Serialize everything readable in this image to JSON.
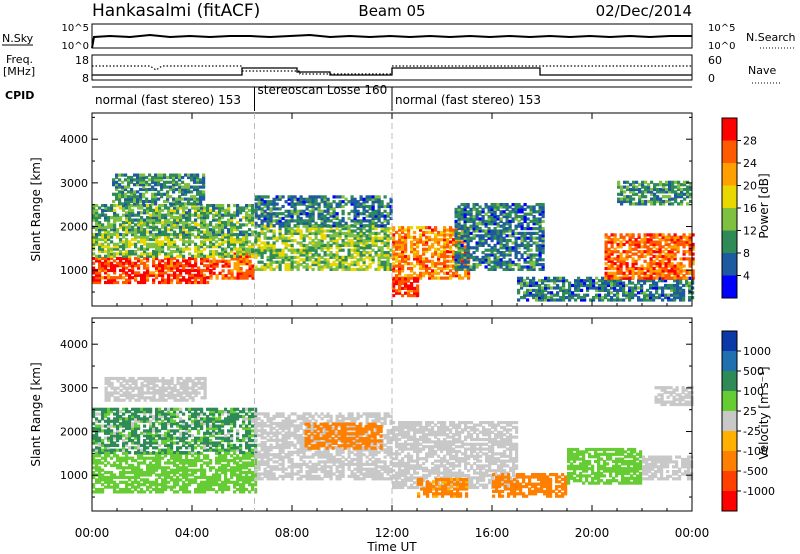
{
  "header": {
    "station": "Hankasalmi (fitACF)",
    "beam": "Beam 05",
    "date": "02/Dec/2014"
  },
  "top_strips": {
    "nsky_label": "N.Sky",
    "nsky_ticks": [
      "10^5",
      "10^0"
    ],
    "nsearch_label": "N.Search",
    "nsearch_ticks": [
      "10^5",
      "10^0"
    ],
    "freq_label": "Freq.",
    "freq_unit": "[MHz]",
    "freq_ticks": [
      "18",
      "8"
    ],
    "nave_label": "Nave",
    "nave_ticks": [
      "60",
      "0"
    ],
    "cpid_label": "CPID",
    "modes": [
      {
        "label": "normal (fast stereo) 153",
        "start": 0,
        "end": 6.5
      },
      {
        "label": "stereoscan Losse 160",
        "start": 6.5,
        "end": 12
      },
      {
        "label": "normal (fast stereo) 153",
        "start": 12,
        "end": 24
      }
    ]
  },
  "colorbars": {
    "power": {
      "label": "Power [dB]",
      "ticks": [
        "28",
        "24",
        "20",
        "16",
        "12",
        "8",
        "4"
      ],
      "colors": [
        "#ff0000",
        "#ff5a00",
        "#ffa000",
        "#e8d800",
        "#80c040",
        "#2e8b57",
        "#1e5aa0",
        "#0000ff"
      ]
    },
    "velocity": {
      "label": "Velocity [m s⁻¹]",
      "ticks": [
        "1000",
        "500",
        "100",
        "25",
        "-25",
        "-100",
        "-500",
        "-1000"
      ],
      "colors": [
        "#0b3aa8",
        "#2070b0",
        "#2e8b57",
        "#66cc33",
        "#c8c8c8",
        "#ffb000",
        "#ff8000",
        "#ff4000",
        "#ff0000"
      ]
    }
  },
  "axes": {
    "ylabel": "Slant Range [km]",
    "xlabel": "Time UT",
    "xticks": [
      "00:00",
      "04:00",
      "08:00",
      "12:00",
      "16:00",
      "20:00",
      "00:00"
    ]
  },
  "chart_data": [
    {
      "type": "heatmap",
      "title": "Power",
      "xlabel": "Time UT",
      "ylabel": "Slant Range [km]",
      "xlim": [
        0,
        24
      ],
      "ylim": [
        180,
        4600
      ],
      "yticks": [
        1000,
        2000,
        3000,
        4000
      ],
      "colorbar_label": "Power [dB]",
      "regions": [
        {
          "t0": 0.0,
          "t1": 4.7,
          "r0": 700,
          "r1": 1300,
          "value": 28
        },
        {
          "t0": 4.7,
          "t1": 6.5,
          "r0": 800,
          "r1": 1400,
          "value": 26
        },
        {
          "t0": 0.0,
          "t1": 6.5,
          "r0": 1300,
          "r1": 1800,
          "value": 14
        },
        {
          "t0": 0.0,
          "t1": 6.5,
          "r0": 1800,
          "r1": 2500,
          "value": 12
        },
        {
          "t0": 0.8,
          "t1": 4.5,
          "r0": 2500,
          "r1": 3200,
          "value": 10
        },
        {
          "t0": 6.5,
          "t1": 12.0,
          "r0": 1000,
          "r1": 2000,
          "value": 14
        },
        {
          "t0": 6.5,
          "t1": 12.0,
          "r0": 2000,
          "r1": 2700,
          "value": 8
        },
        {
          "t0": 12.0,
          "t1": 15.0,
          "r0": 800,
          "r1": 2000,
          "value": 24
        },
        {
          "t0": 12.0,
          "t1": 13.0,
          "r0": 400,
          "r1": 800,
          "value": 28
        },
        {
          "t0": 14.5,
          "t1": 18.0,
          "r0": 1000,
          "r1": 2500,
          "value": 8
        },
        {
          "t0": 17.0,
          "t1": 24.0,
          "r0": 300,
          "r1": 800,
          "value": 8
        },
        {
          "t0": 20.5,
          "t1": 24.0,
          "r0": 800,
          "r1": 1800,
          "value": 26
        },
        {
          "t0": 21.0,
          "t1": 24.0,
          "r0": 2500,
          "r1": 3000,
          "value": 10
        }
      ]
    },
    {
      "type": "heatmap",
      "title": "Velocity",
      "xlabel": "Time UT",
      "ylabel": "Slant Range [km]",
      "xlim": [
        0,
        24
      ],
      "ylim": [
        180,
        4600
      ],
      "yticks": [
        1000,
        2000,
        3000,
        4000
      ],
      "colorbar_label": "Velocity [m s⁻¹]",
      "regions": [
        {
          "t0": 0.0,
          "t1": 6.5,
          "r0": 600,
          "r1": 1500,
          "value": 60
        },
        {
          "t0": 0.0,
          "t1": 6.5,
          "r0": 1500,
          "r1": 2500,
          "value": 150
        },
        {
          "t0": 0.5,
          "t1": 4.5,
          "r0": 2700,
          "r1": 3200,
          "value": 0
        },
        {
          "t0": 6.5,
          "t1": 12.0,
          "r0": 900,
          "r1": 2400,
          "value": 0
        },
        {
          "t0": 8.5,
          "t1": 11.5,
          "r0": 1600,
          "r1": 2200,
          "value": -300
        },
        {
          "t0": 12.0,
          "t1": 17.0,
          "r0": 700,
          "r1": 2200,
          "value": 0
        },
        {
          "t0": 13.0,
          "t1": 15.0,
          "r0": 500,
          "r1": 900,
          "value": -200
        },
        {
          "t0": 16.0,
          "t1": 19.0,
          "r0": 500,
          "r1": 1000,
          "value": -300
        },
        {
          "t0": 19.0,
          "t1": 22.0,
          "r0": 800,
          "r1": 1600,
          "value": 80
        },
        {
          "t0": 22.0,
          "t1": 24.0,
          "r0": 900,
          "r1": 1400,
          "value": 0
        },
        {
          "t0": 22.5,
          "t1": 24.0,
          "r0": 2600,
          "r1": 3000,
          "value": 0
        }
      ]
    }
  ]
}
